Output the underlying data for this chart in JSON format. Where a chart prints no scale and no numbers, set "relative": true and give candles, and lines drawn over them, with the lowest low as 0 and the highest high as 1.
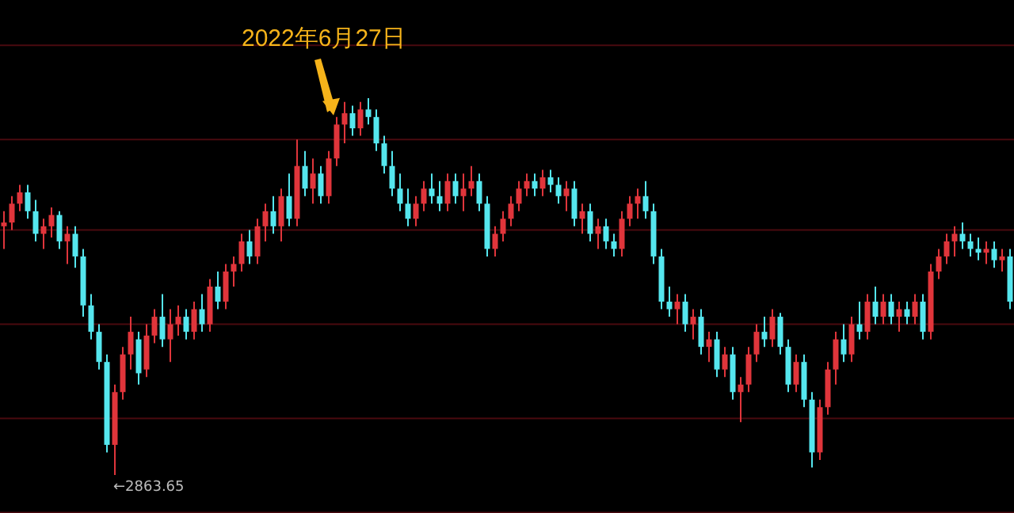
{
  "chart_data": {
    "type": "candlestick",
    "relative": true,
    "categories": [
      null,
      null,
      null,
      null,
      null,
      null,
      null,
      null,
      null,
      null,
      null,
      null,
      null,
      null,
      null,
      null,
      null,
      null,
      null,
      null,
      null,
      null,
      null,
      null,
      null,
      null,
      null,
      null,
      null,
      null,
      null,
      null,
      null,
      null,
      null,
      null,
      null,
      null,
      null,
      null,
      null,
      null,
      null,
      null,
      null,
      null,
      null,
      null,
      null,
      null,
      null,
      null,
      null,
      null,
      null,
      null,
      null,
      null,
      null,
      null,
      null,
      null,
      null,
      null,
      null,
      null,
      null,
      null,
      null,
      null,
      null,
      null,
      null,
      null,
      null,
      null,
      null,
      null,
      null,
      null,
      null,
      null,
      null,
      null,
      null,
      null,
      null,
      null,
      null,
      null,
      null,
      null,
      null,
      null,
      null,
      null,
      null,
      null,
      null,
      null,
      null,
      null,
      null,
      null,
      null,
      null,
      null,
      null,
      null,
      null,
      null,
      null,
      null,
      null,
      null,
      null,
      null,
      null,
      null,
      null,
      null,
      null,
      null,
      null,
      null,
      null,
      null,
      null
    ],
    "ohlc": [
      [
        0.66,
        0.7,
        0.6,
        0.67
      ],
      [
        0.67,
        0.74,
        0.65,
        0.72
      ],
      [
        0.72,
        0.77,
        0.7,
        0.75
      ],
      [
        0.75,
        0.77,
        0.68,
        0.7
      ],
      [
        0.7,
        0.73,
        0.62,
        0.64
      ],
      [
        0.64,
        0.68,
        0.6,
        0.66
      ],
      [
        0.66,
        0.71,
        0.63,
        0.69
      ],
      [
        0.69,
        0.7,
        0.6,
        0.62
      ],
      [
        0.62,
        0.66,
        0.56,
        0.64
      ],
      [
        0.64,
        0.66,
        0.55,
        0.58
      ],
      [
        0.58,
        0.6,
        0.42,
        0.45
      ],
      [
        0.45,
        0.48,
        0.36,
        0.38
      ],
      [
        0.38,
        0.4,
        0.28,
        0.3
      ],
      [
        0.3,
        0.32,
        0.06,
        0.08
      ],
      [
        0.08,
        0.24,
        0.0,
        0.22
      ],
      [
        0.22,
        0.34,
        0.2,
        0.32
      ],
      [
        0.32,
        0.42,
        0.28,
        0.38
      ],
      [
        0.36,
        0.38,
        0.24,
        0.27
      ],
      [
        0.28,
        0.4,
        0.26,
        0.37
      ],
      [
        0.37,
        0.44,
        0.35,
        0.42
      ],
      [
        0.42,
        0.48,
        0.34,
        0.36
      ],
      [
        0.36,
        0.44,
        0.3,
        0.4
      ],
      [
        0.4,
        0.45,
        0.37,
        0.42
      ],
      [
        0.42,
        0.44,
        0.36,
        0.38
      ],
      [
        0.38,
        0.46,
        0.36,
        0.44
      ],
      [
        0.44,
        0.48,
        0.38,
        0.4
      ],
      [
        0.4,
        0.52,
        0.38,
        0.5
      ],
      [
        0.5,
        0.54,
        0.44,
        0.46
      ],
      [
        0.46,
        0.56,
        0.44,
        0.54
      ],
      [
        0.54,
        0.58,
        0.5,
        0.56
      ],
      [
        0.56,
        0.64,
        0.54,
        0.62
      ],
      [
        0.62,
        0.65,
        0.56,
        0.58
      ],
      [
        0.58,
        0.68,
        0.56,
        0.66
      ],
      [
        0.66,
        0.72,
        0.62,
        0.7
      ],
      [
        0.7,
        0.74,
        0.64,
        0.66
      ],
      [
        0.66,
        0.76,
        0.62,
        0.74
      ],
      [
        0.74,
        0.8,
        0.66,
        0.68
      ],
      [
        0.68,
        0.89,
        0.66,
        0.82
      ],
      [
        0.82,
        0.86,
        0.74,
        0.76
      ],
      [
        0.76,
        0.84,
        0.72,
        0.8
      ],
      [
        0.8,
        0.82,
        0.72,
        0.74
      ],
      [
        0.74,
        0.86,
        0.72,
        0.84
      ],
      [
        0.84,
        0.95,
        0.82,
        0.93
      ],
      [
        0.93,
        0.99,
        0.88,
        0.96
      ],
      [
        0.96,
        0.98,
        0.9,
        0.92
      ],
      [
        0.92,
        0.99,
        0.9,
        0.97
      ],
      [
        0.97,
        1.0,
        0.93,
        0.95
      ],
      [
        0.95,
        0.97,
        0.86,
        0.88
      ],
      [
        0.88,
        0.9,
        0.8,
        0.82
      ],
      [
        0.82,
        0.86,
        0.74,
        0.76
      ],
      [
        0.76,
        0.8,
        0.7,
        0.72
      ],
      [
        0.72,
        0.76,
        0.66,
        0.68
      ],
      [
        0.68,
        0.74,
        0.66,
        0.72
      ],
      [
        0.72,
        0.78,
        0.7,
        0.76
      ],
      [
        0.76,
        0.8,
        0.72,
        0.74
      ],
      [
        0.74,
        0.78,
        0.7,
        0.72
      ],
      [
        0.72,
        0.8,
        0.7,
        0.78
      ],
      [
        0.78,
        0.8,
        0.72,
        0.74
      ],
      [
        0.74,
        0.8,
        0.7,
        0.76
      ],
      [
        0.76,
        0.82,
        0.74,
        0.78
      ],
      [
        0.78,
        0.8,
        0.7,
        0.72
      ],
      [
        0.72,
        0.74,
        0.58,
        0.6
      ],
      [
        0.6,
        0.66,
        0.58,
        0.64
      ],
      [
        0.64,
        0.7,
        0.62,
        0.68
      ],
      [
        0.68,
        0.74,
        0.66,
        0.72
      ],
      [
        0.72,
        0.78,
        0.7,
        0.76
      ],
      [
        0.76,
        0.8,
        0.74,
        0.78
      ],
      [
        0.78,
        0.8,
        0.74,
        0.76
      ],
      [
        0.76,
        0.81,
        0.74,
        0.79
      ],
      [
        0.79,
        0.81,
        0.75,
        0.77
      ],
      [
        0.77,
        0.79,
        0.72,
        0.74
      ],
      [
        0.74,
        0.78,
        0.7,
        0.76
      ],
      [
        0.76,
        0.78,
        0.66,
        0.68
      ],
      [
        0.68,
        0.72,
        0.64,
        0.7
      ],
      [
        0.7,
        0.72,
        0.62,
        0.64
      ],
      [
        0.64,
        0.68,
        0.6,
        0.66
      ],
      [
        0.66,
        0.68,
        0.6,
        0.62
      ],
      [
        0.62,
        0.64,
        0.58,
        0.6
      ],
      [
        0.6,
        0.7,
        0.58,
        0.68
      ],
      [
        0.68,
        0.74,
        0.66,
        0.72
      ],
      [
        0.72,
        0.76,
        0.68,
        0.74
      ],
      [
        0.74,
        0.78,
        0.68,
        0.7
      ],
      [
        0.7,
        0.72,
        0.56,
        0.58
      ],
      [
        0.58,
        0.6,
        0.44,
        0.46
      ],
      [
        0.46,
        0.5,
        0.42,
        0.44
      ],
      [
        0.44,
        0.48,
        0.4,
        0.46
      ],
      [
        0.46,
        0.48,
        0.38,
        0.4
      ],
      [
        0.4,
        0.44,
        0.36,
        0.42
      ],
      [
        0.42,
        0.44,
        0.32,
        0.34
      ],
      [
        0.34,
        0.38,
        0.3,
        0.36
      ],
      [
        0.36,
        0.38,
        0.26,
        0.28
      ],
      [
        0.28,
        0.34,
        0.26,
        0.32
      ],
      [
        0.32,
        0.34,
        0.2,
        0.22
      ],
      [
        0.22,
        0.26,
        0.14,
        0.24
      ],
      [
        0.24,
        0.34,
        0.22,
        0.32
      ],
      [
        0.32,
        0.4,
        0.3,
        0.38
      ],
      [
        0.38,
        0.42,
        0.34,
        0.36
      ],
      [
        0.36,
        0.44,
        0.34,
        0.42
      ],
      [
        0.42,
        0.43,
        0.32,
        0.34
      ],
      [
        0.34,
        0.36,
        0.22,
        0.24
      ],
      [
        0.24,
        0.32,
        0.22,
        0.3
      ],
      [
        0.3,
        0.32,
        0.18,
        0.2
      ],
      [
        0.2,
        0.22,
        0.02,
        0.06
      ],
      [
        0.06,
        0.2,
        0.04,
        0.18
      ],
      [
        0.18,
        0.3,
        0.16,
        0.28
      ],
      [
        0.28,
        0.38,
        0.24,
        0.36
      ],
      [
        0.36,
        0.4,
        0.3,
        0.32
      ],
      [
        0.32,
        0.42,
        0.3,
        0.4
      ],
      [
        0.4,
        0.46,
        0.36,
        0.38
      ],
      [
        0.38,
        0.48,
        0.36,
        0.46
      ],
      [
        0.46,
        0.5,
        0.4,
        0.42
      ],
      [
        0.42,
        0.48,
        0.4,
        0.46
      ],
      [
        0.46,
        0.48,
        0.4,
        0.42
      ],
      [
        0.42,
        0.46,
        0.38,
        0.44
      ],
      [
        0.44,
        0.46,
        0.4,
        0.42
      ],
      [
        0.42,
        0.48,
        0.4,
        0.46
      ],
      [
        0.46,
        0.48,
        0.36,
        0.38
      ],
      [
        0.38,
        0.56,
        0.36,
        0.54
      ],
      [
        0.54,
        0.6,
        0.52,
        0.58
      ],
      [
        0.58,
        0.64,
        0.56,
        0.62
      ],
      [
        0.62,
        0.66,
        0.58,
        0.64
      ],
      [
        0.64,
        0.67,
        0.6,
        0.62
      ],
      [
        0.62,
        0.64,
        0.58,
        0.6
      ],
      [
        0.6,
        0.63,
        0.57,
        0.59
      ],
      [
        0.59,
        0.62,
        0.56,
        0.6
      ],
      [
        0.6,
        0.62,
        0.55,
        0.57
      ],
      [
        0.57,
        0.6,
        0.54,
        0.58
      ],
      [
        0.58,
        0.6,
        0.44,
        0.46
      ]
    ],
    "ref_lines": [
      {
        "axis": "y",
        "value": 1.14,
        "color": "#4a0a0f"
      },
      {
        "axis": "y",
        "value": 0.89,
        "color": "#4a0a0f"
      },
      {
        "axis": "y",
        "value": 0.65,
        "color": "#4a0a0f"
      },
      {
        "axis": "y",
        "value": 0.4,
        "color": "#4a0a0f"
      },
      {
        "axis": "y",
        "value": 0.15,
        "color": "#4a0a0f"
      },
      {
        "axis": "y",
        "value": -0.1,
        "color": "#4a0a0f"
      }
    ],
    "annotations": [
      "2022年6月27日",
      "←2863.65"
    ]
  }
}
